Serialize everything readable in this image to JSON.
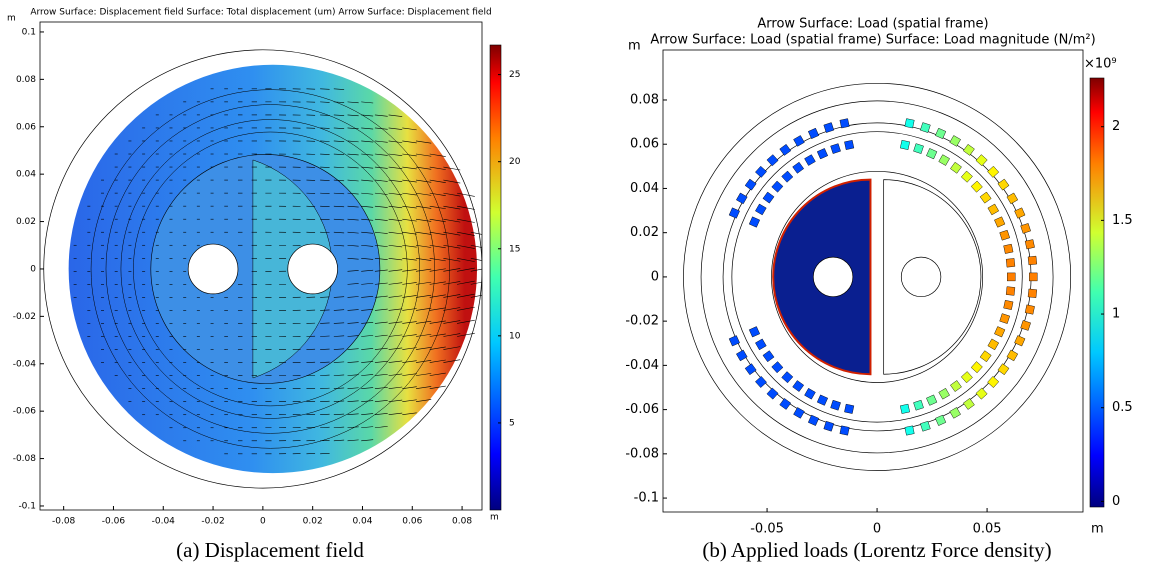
{
  "panels": [
    {
      "title_lines": [
        "Arrow Surface: Displacement field  Surface: Total displacement (um)  Arrow Surface: Displacement field"
      ],
      "x_unit": "m",
      "y_unit": "m",
      "xlim": [
        -0.0895,
        0.088
      ],
      "ylim": [
        -0.1017,
        0.1042
      ],
      "xticks": [
        -0.08,
        -0.06,
        -0.04,
        -0.02,
        0,
        0.02,
        0.04,
        0.06,
        0.08
      ],
      "yticks": [
        0.1,
        0.08,
        0.06,
        0.04,
        0.02,
        0,
        -0.02,
        -0.04,
        -0.06,
        -0.08,
        -0.1
      ],
      "colorbar_lim": [
        0,
        26.7
      ],
      "colorbar_ticks": [
        5,
        10,
        15,
        20,
        25
      ],
      "caption": "(a) Displacement field"
    },
    {
      "title_lines": [
        "Arrow Surface: Load (spatial frame)",
        "Arrow Surface: Load (spatial frame)  Surface: Load magnitude (N/m²)"
      ],
      "x_unit": "m",
      "y_unit": "m",
      "xlim": [
        -0.0973,
        0.0936
      ],
      "ylim": [
        -0.1063,
        0.1026
      ],
      "xticks": [
        -0.05,
        0,
        0.05
      ],
      "yticks": [
        0.08,
        0.06,
        0.04,
        0.02,
        0,
        -0.02,
        -0.04,
        -0.06,
        -0.08,
        -0.1
      ],
      "colorbar_lim": [
        -0.03,
        2.26
      ],
      "colorbar_ticks": [
        0,
        0.5,
        1,
        1.5,
        2
      ],
      "colorbar_multiplier": "×10⁹",
      "caption": "(b) Applied loads (Lorentz Force density)"
    }
  ]
}
